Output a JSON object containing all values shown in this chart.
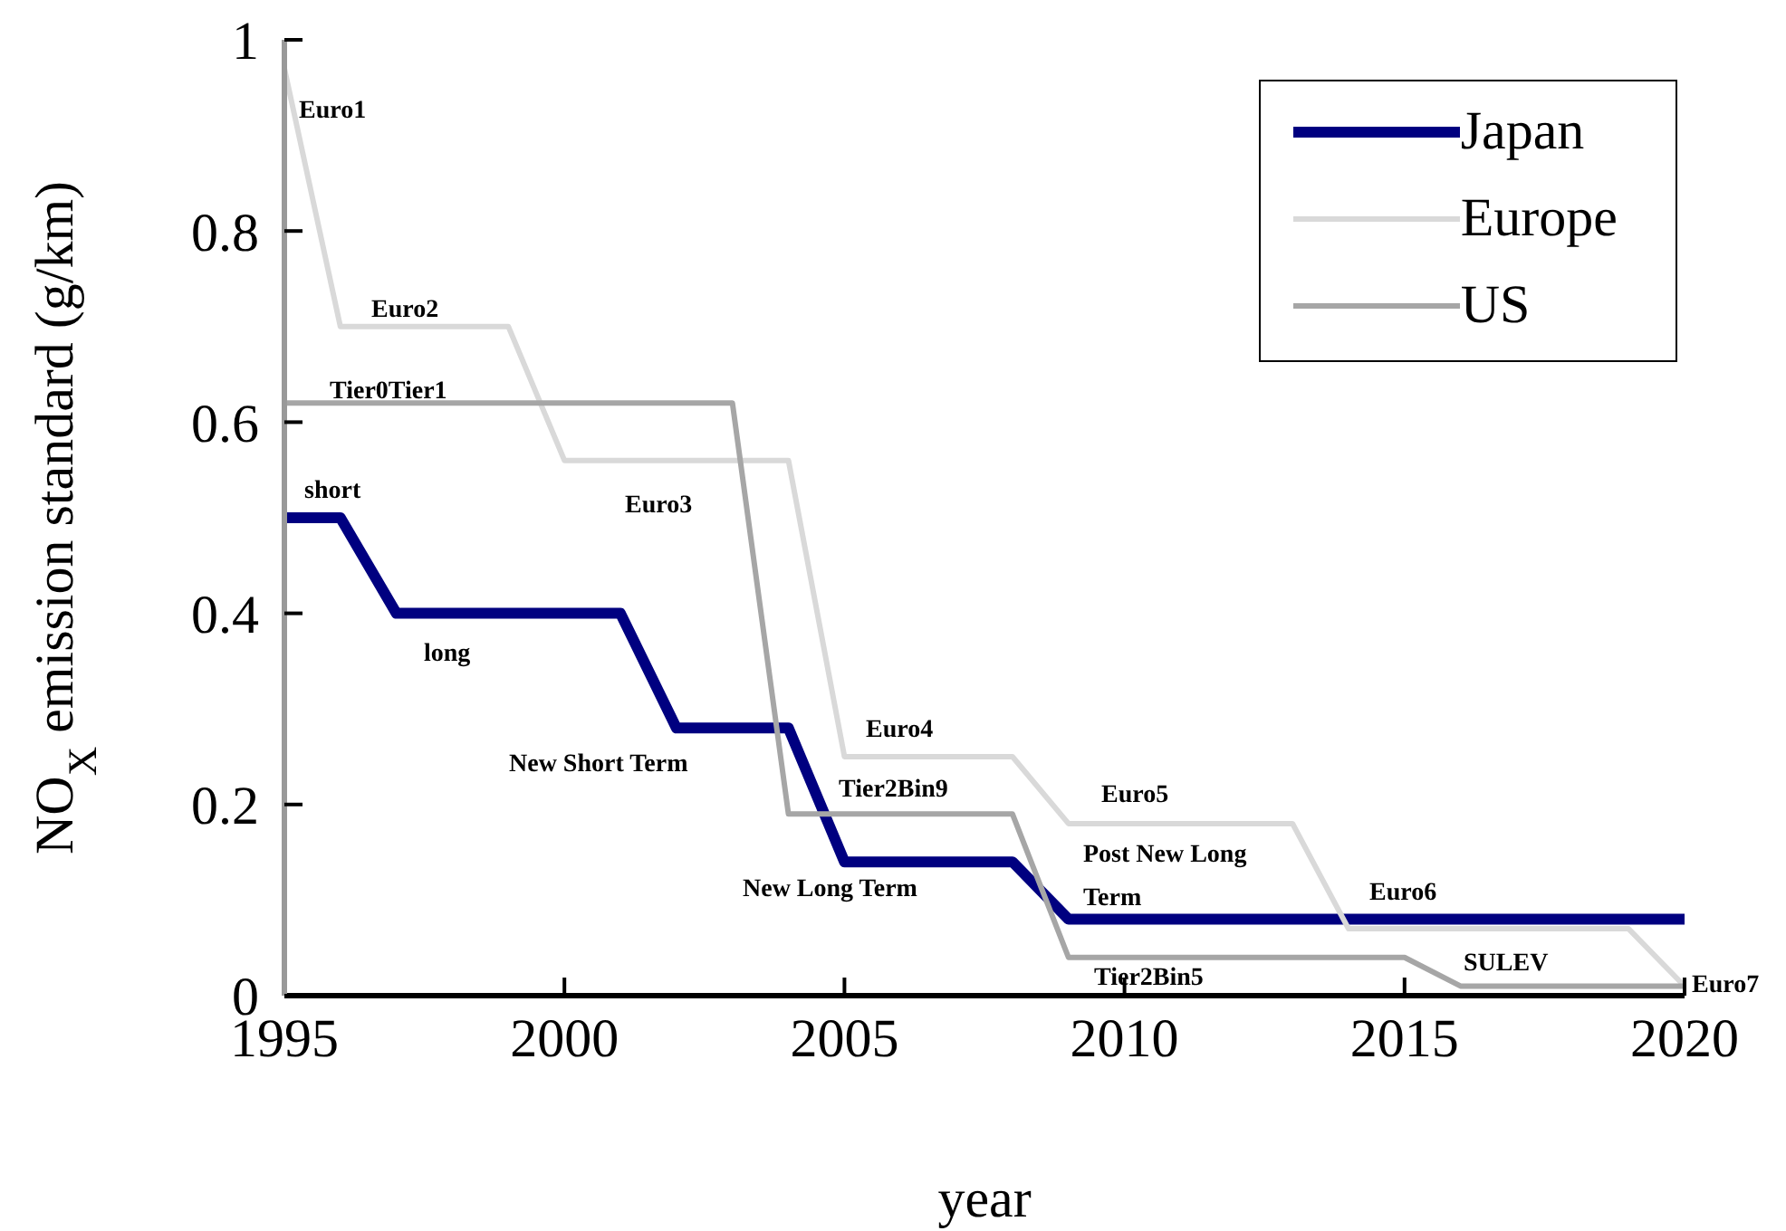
{
  "chart_data": {
    "type": "line",
    "xlabel": "year",
    "ylabel": "NO$_{X}$ emission standard (g/km)",
    "xlim": [
      1995,
      2020
    ],
    "xticks": [
      1995,
      2000,
      2005,
      2010,
      2015,
      2020
    ],
    "ylim": [
      0,
      1
    ],
    "yticks": [
      0,
      0.2,
      0.4,
      0.6,
      0.8,
      1
    ],
    "legend": "top right",
    "marker": "none",
    "line_style": "solid",
    "series": [
      {
        "name": "Japan",
        "color": "#000080",
        "x": [
          1995,
          1996,
          1997,
          2001,
          2002,
          2004,
          2005,
          2008,
          2009,
          2020
        ],
        "values": [
          0.5,
          0.5,
          0.4,
          0.4,
          0.28,
          0.28,
          0.14,
          0.14,
          0.08,
          0.08
        ]
      },
      {
        "name": "Europe",
        "color": "#d9d9d9",
        "x": [
          1995,
          1996,
          1999,
          2000,
          2004,
          2005,
          2008,
          2009,
          2013,
          2014,
          2019,
          2020
        ],
        "values": [
          0.97,
          0.7,
          0.7,
          0.56,
          0.56,
          0.25,
          0.25,
          0.18,
          0.18,
          0.07,
          0.07,
          0.01
        ]
      },
      {
        "name": "US",
        "color": "#a6a6a6",
        "x": [
          1995,
          2003,
          2004,
          2008,
          2009,
          2015,
          2016,
          2020
        ],
        "values": [
          0.62,
          0.62,
          0.19,
          0.19,
          0.04,
          0.04,
          0.01,
          0.01
        ]
      }
    ],
    "annotations": [
      "Euro1",
      "Euro2",
      "Tier0Tier1",
      "short",
      "Euro3",
      "long",
      "New Short Term",
      "Euro4",
      "Tier2Bin9",
      "Euro5",
      "New Long Term",
      "Post New Long Term",
      "Euro6",
      "Tier2Bin5",
      "SULEV",
      "Euro7"
    ]
  }
}
